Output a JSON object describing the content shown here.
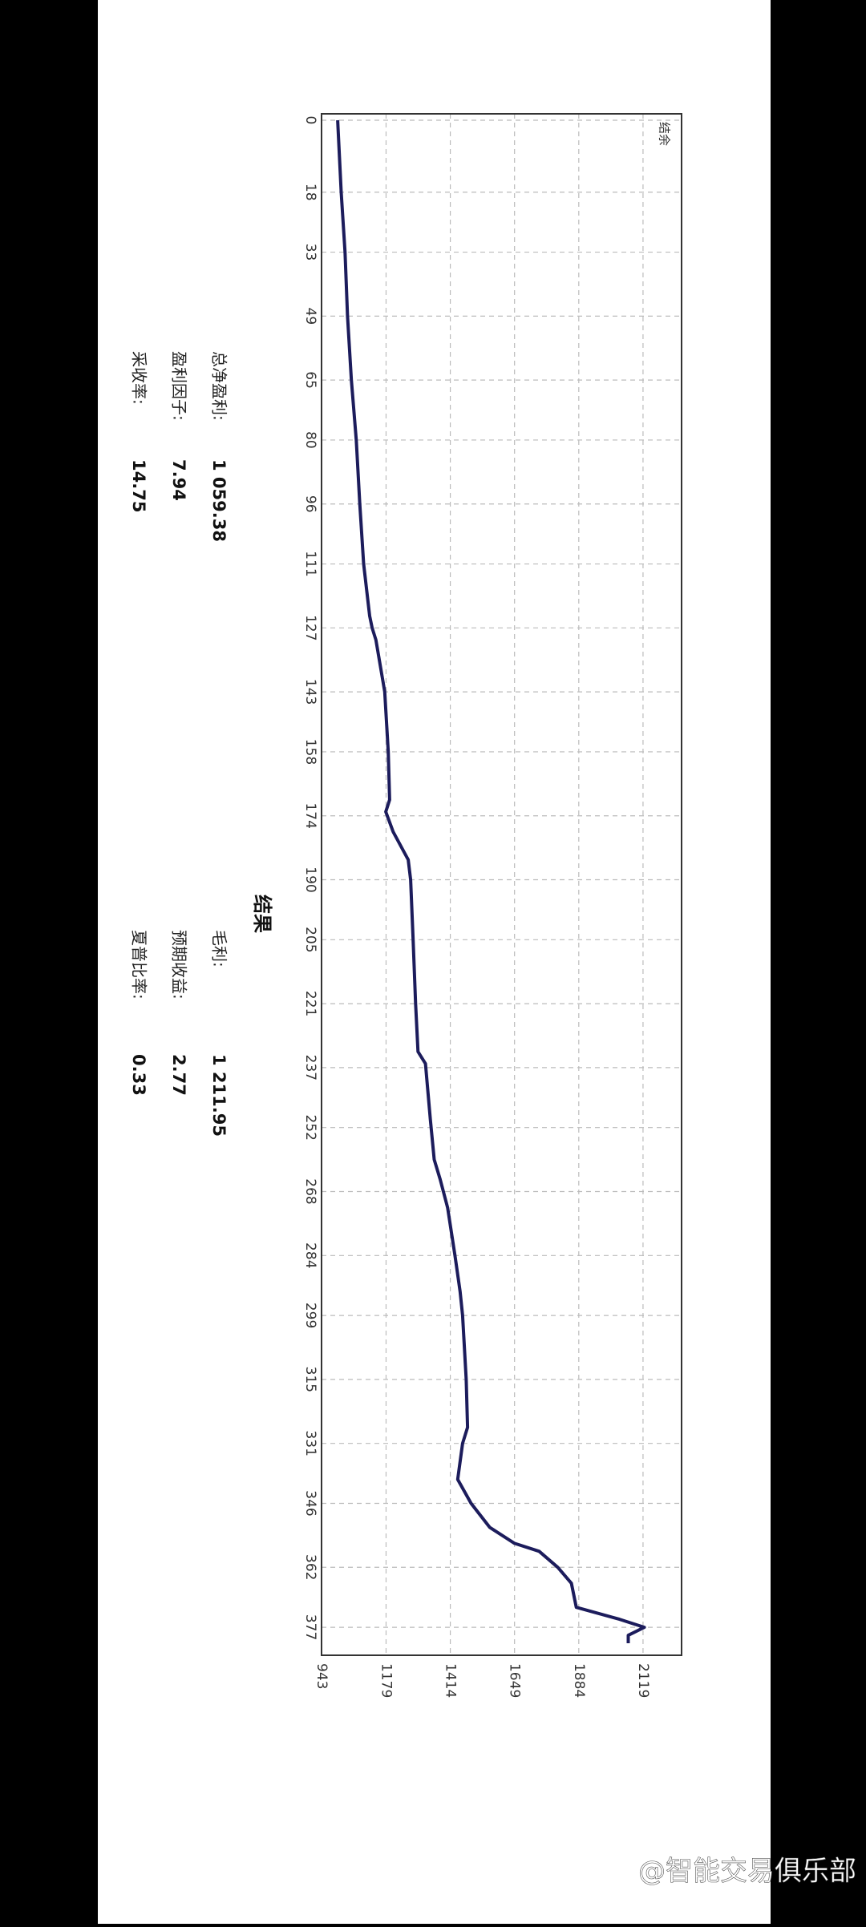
{
  "chart_data": {
    "type": "line",
    "x": [
      0,
      18,
      33,
      49,
      65,
      80,
      96,
      111,
      124,
      127,
      130,
      143,
      158,
      170,
      173,
      178,
      185,
      190,
      205,
      221,
      233,
      236,
      250,
      260,
      265,
      272,
      284,
      293,
      299,
      315,
      327,
      331,
      340,
      346,
      352,
      356,
      358,
      362,
      366,
      372,
      375,
      377,
      379,
      381
    ],
    "series": [
      {
        "name": "结余",
        "color": "#1c1c5c",
        "values": [
          1002,
          1015,
          1029,
          1038,
          1052,
          1070,
          1083,
          1097,
          1119,
          1128,
          1142,
          1174,
          1187,
          1192,
          1178,
          1205,
          1260,
          1269,
          1278,
          1287,
          1296,
          1323,
          1341,
          1355,
          1377,
          1404,
          1431,
          1450,
          1459,
          1472,
          1477,
          1459,
          1441,
          1490,
          1558,
          1649,
          1739,
          1807,
          1857,
          1875,
          2033,
          2124,
          2065,
          2065
        ]
      }
    ],
    "xlim": [
      -1.6,
      384
    ],
    "xticks": [
      0,
      18,
      33,
      49,
      65,
      80,
      96,
      111,
      127,
      143,
      158,
      174,
      190,
      205,
      221,
      237,
      252,
      268,
      284,
      299,
      315,
      331,
      346,
      362,
      377
    ],
    "ylim": [
      943,
      2260
    ],
    "yticks": [
      943,
      1179,
      1414,
      1649,
      1884,
      2119
    ],
    "grid": true
  },
  "results": {
    "title": "结果",
    "left": [
      {
        "label": "总净盈利:",
        "value": "1 059.38"
      },
      {
        "label": "盈利因子:",
        "value": "7.94"
      },
      {
        "label": "采收率:",
        "value": "14.75"
      }
    ],
    "right": [
      {
        "label": "毛利:",
        "value": "1 211.95"
      },
      {
        "label": "预期收益:",
        "value": "2.77"
      },
      {
        "label": "夏普比率:",
        "value": "0.33"
      }
    ]
  },
  "watermark": "@智能交易俱乐部"
}
